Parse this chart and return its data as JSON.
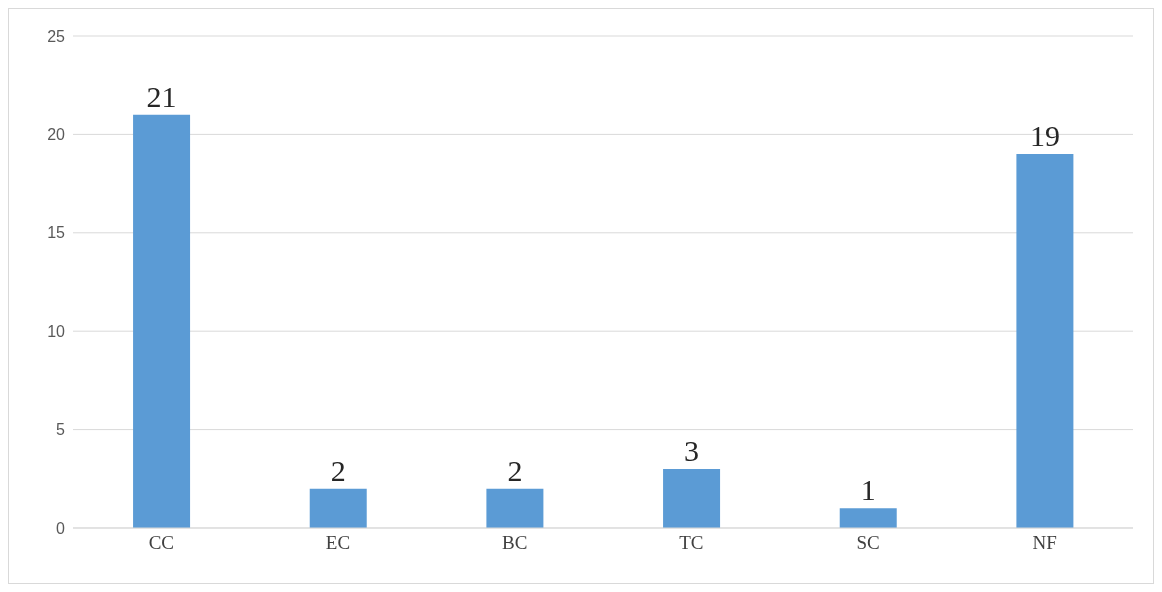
{
  "chart_data": {
    "type": "bar",
    "categories": [
      "CC",
      "EC",
      "BC",
      "TC",
      "SC",
      "NF"
    ],
    "values": [
      21,
      2,
      2,
      3,
      1,
      19
    ],
    "color": "#5b9bd5",
    "ylim": [
      0,
      25
    ],
    "yticks": [
      0,
      5,
      10,
      15,
      20,
      25
    ],
    "grid": "y",
    "data_labels": true,
    "legend": false
  }
}
